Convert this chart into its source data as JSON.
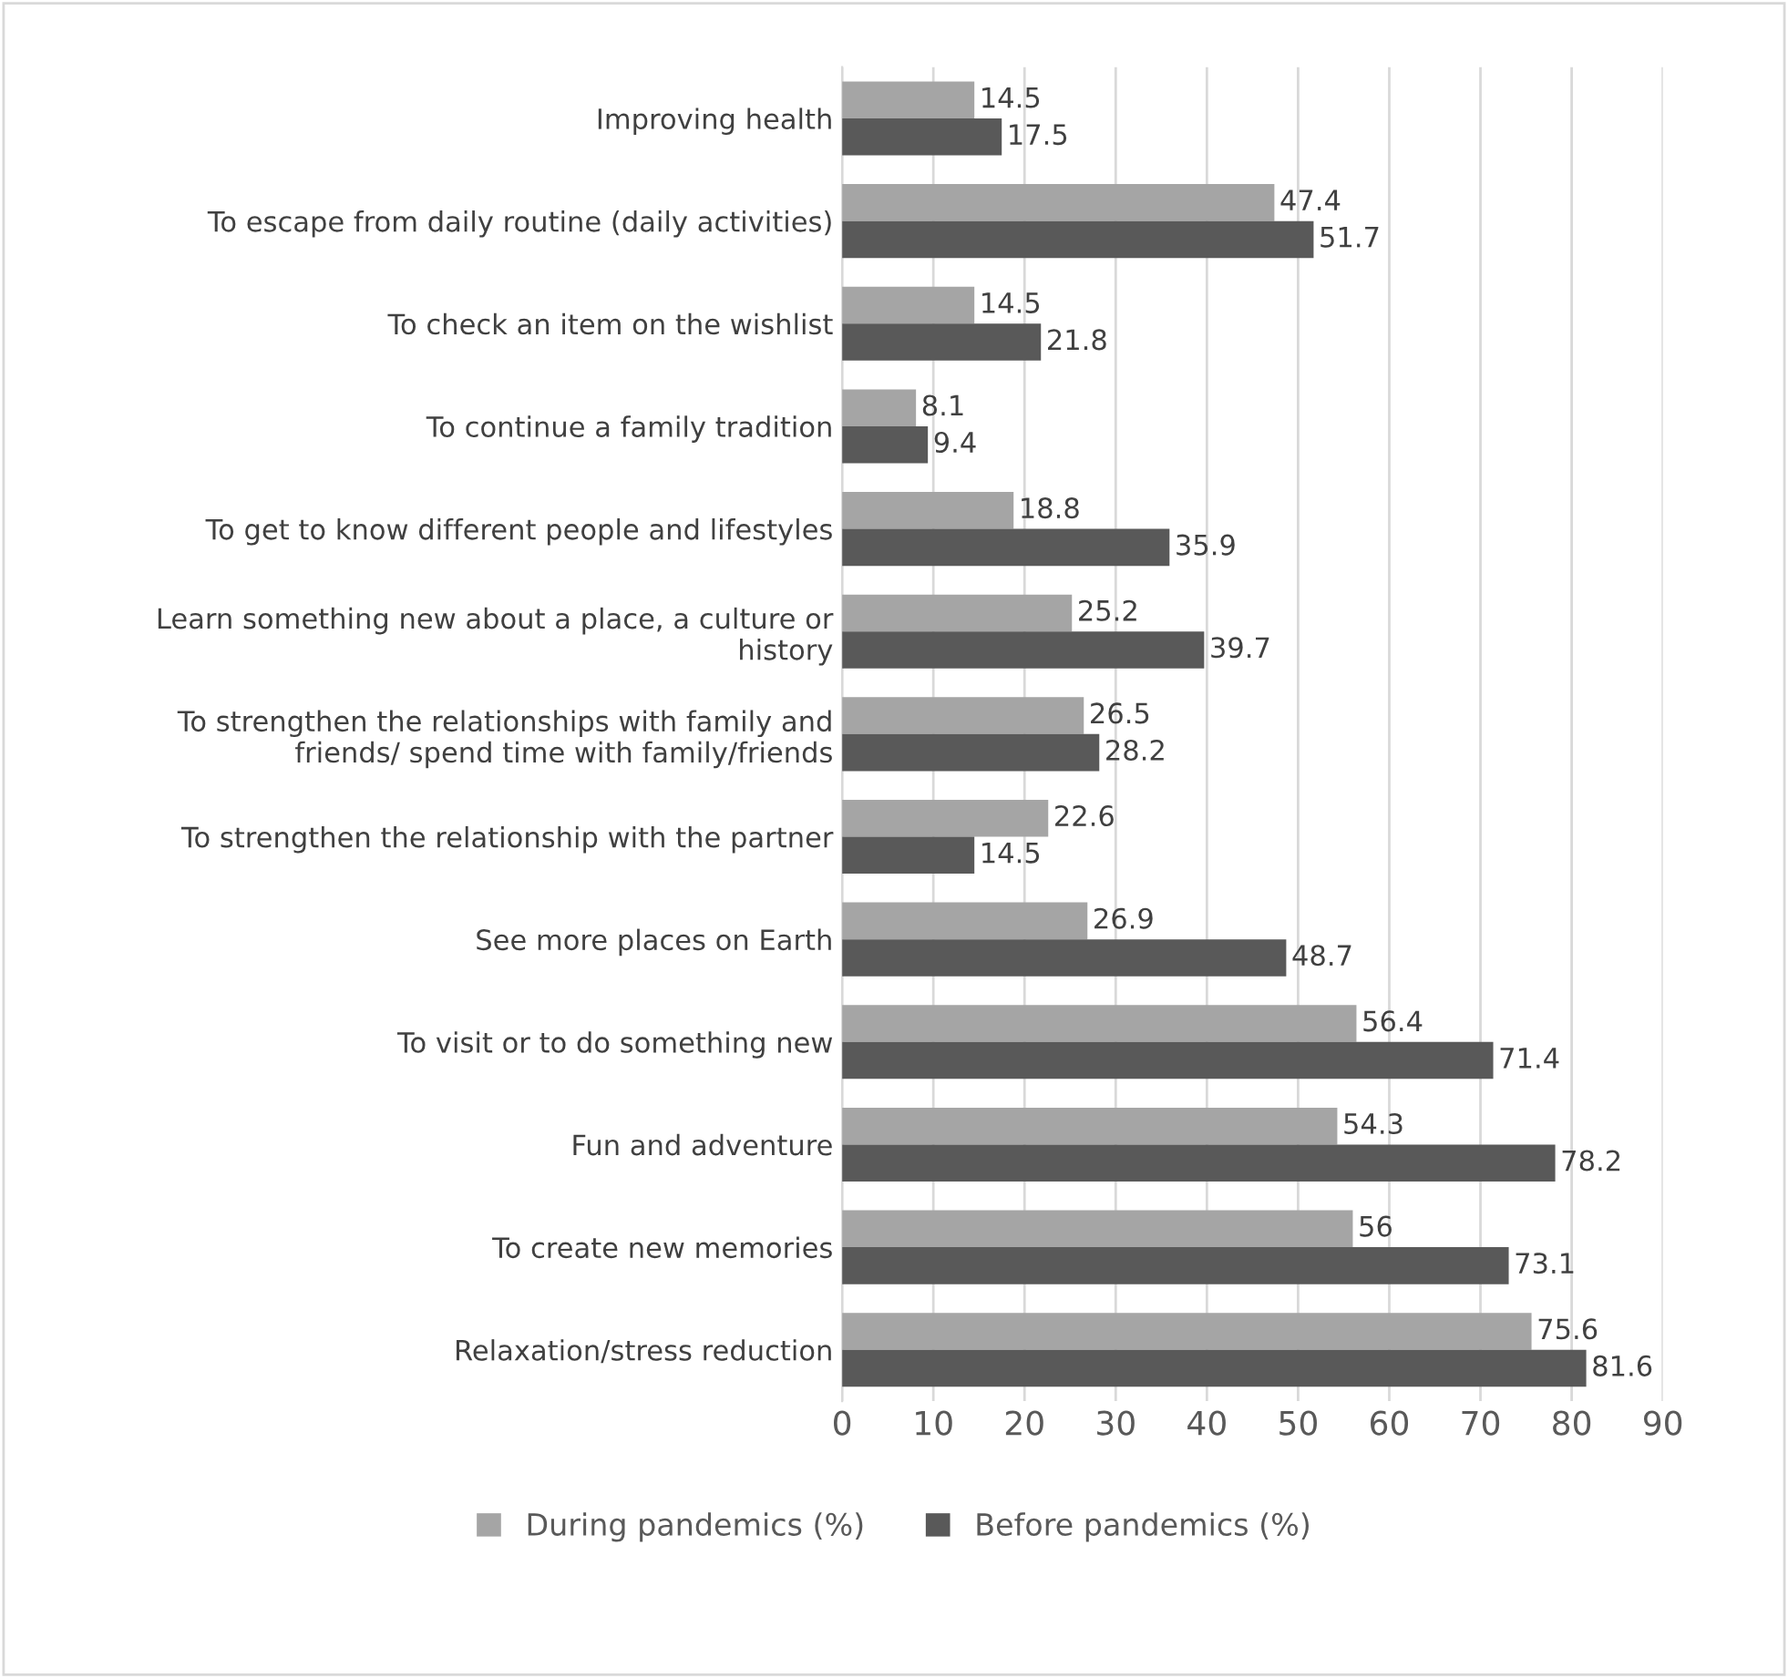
{
  "chart_data": {
    "type": "bar",
    "orientation": "horizontal",
    "categories": [
      "Improving health",
      "To escape from daily routine (daily activities)",
      "To check an item on the wishlist",
      "To continue a family tradition",
      "To get to know different people and lifestyles",
      "Learn something new about a place, a culture or\nhistory",
      "To strengthen the relationships with family and\nfriends/ spend time with family/friends",
      "To strengthen the relationship with the partner",
      "See more places on Earth",
      "To visit or to do something new",
      "Fun and adventure",
      "To create new memories",
      "Relaxation/stress reduction"
    ],
    "series": [
      {
        "name": "During pandemics (%)",
        "color": "#a5a5a5",
        "values": [
          14.5,
          47.4,
          14.5,
          8.1,
          18.8,
          25.2,
          26.5,
          22.6,
          26.9,
          56.4,
          54.3,
          56,
          75.6
        ]
      },
      {
        "name": "Before pandemics (%)",
        "color": "#595959",
        "values": [
          17.5,
          51.7,
          21.8,
          9.4,
          35.9,
          39.7,
          28.2,
          14.5,
          48.7,
          71.4,
          78.2,
          73.1,
          81.6
        ]
      }
    ],
    "xlim": [
      0,
      90
    ],
    "xticks": [
      0,
      10,
      20,
      30,
      40,
      50,
      60,
      70,
      80,
      90
    ],
    "grid": "x",
    "legend": "bottom",
    "data_labels": true
  }
}
